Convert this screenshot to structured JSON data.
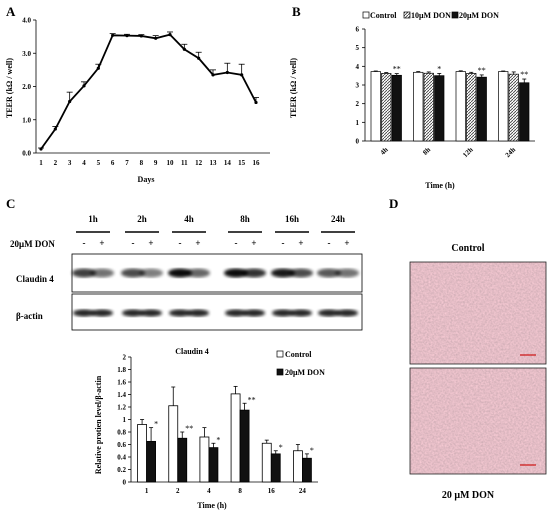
{
  "panels": {
    "A": "A",
    "B": "B",
    "C": "C",
    "D": "D"
  },
  "colors": {
    "control": "#ffffff",
    "don10": "#b8b8b8",
    "don20": "#111111",
    "photo": "#c89aa4",
    "scalebar": "#cc1111"
  },
  "blot": {
    "times": [
      "1h",
      "2h",
      "4h",
      "8h",
      "16h",
      "24h"
    ],
    "treatment_label": "20μM DON",
    "signs": [
      "-",
      "+",
      "-",
      "+",
      "-",
      "+",
      "-",
      "+",
      "-",
      "+",
      "-",
      "+"
    ],
    "rows": [
      "Claudin 4",
      "β-actin"
    ]
  },
  "micrographs": {
    "top_label": "Control",
    "bottom_label": "20 μM  DON"
  },
  "chart_data": [
    {
      "id": "A",
      "type": "line",
      "title": "",
      "xlabel": "Days",
      "ylabel": "TEER (kΩ / well)",
      "x": [
        1,
        2,
        3,
        4,
        5,
        6,
        7,
        8,
        9,
        10,
        11,
        12,
        13,
        14,
        15,
        16
      ],
      "y": [
        0.12,
        0.72,
        1.55,
        2.02,
        2.55,
        3.54,
        3.53,
        3.52,
        3.45,
        3.56,
        3.12,
        2.85,
        2.35,
        2.42,
        2.35,
        1.52
      ],
      "err": [
        0.03,
        0.08,
        0.28,
        0.12,
        0.12,
        0.05,
        0.04,
        0.04,
        0.08,
        0.08,
        0.15,
        0.18,
        0.15,
        0.28,
        0.32,
        0.15
      ],
      "ylim": [
        0,
        4
      ],
      "yticks": [
        "0.0",
        "1.0",
        "2.0",
        "3.0",
        "4.0"
      ]
    },
    {
      "id": "B",
      "type": "bar",
      "title": "",
      "xlabel": "Time (h)",
      "ylabel": "TEER (kΩ / well)",
      "categories": [
        "4h",
        "8h",
        "12h",
        "24h"
      ],
      "ylim": [
        0,
        6
      ],
      "yticks": [
        "0",
        "1",
        "2",
        "3",
        "4",
        "5",
        "6"
      ],
      "legend": [
        "Control",
        "10μM DON",
        "20μM DON"
      ],
      "series": [
        {
          "name": "Control",
          "values": [
            3.72,
            3.68,
            3.72,
            3.72
          ],
          "err": [
            0.03,
            0.04,
            0.04,
            0.03
          ]
        },
        {
          "name": "10μM DON",
          "values": [
            3.62,
            3.63,
            3.62,
            3.58
          ],
          "err": [
            0.05,
            0.07,
            0.06,
            0.12
          ]
        },
        {
          "name": "20μM DON",
          "values": [
            3.52,
            3.5,
            3.42,
            3.12
          ],
          "err": [
            0.09,
            0.12,
            0.12,
            0.2
          ]
        }
      ],
      "annotations": [
        {
          "category": "4h",
          "series": "20μM DON",
          "text": "**"
        },
        {
          "category": "8h",
          "series": "20μM DON",
          "text": "*"
        },
        {
          "category": "12h",
          "series": "20μM DON",
          "text": "**"
        },
        {
          "category": "24h",
          "series": "20μM DON",
          "text": "**"
        }
      ]
    },
    {
      "id": "C",
      "type": "bar",
      "title": "Claudin 4",
      "xlabel": "Time (h)",
      "ylabel": "Relative protien level/β-actin",
      "categories": [
        "1",
        "2",
        "4",
        "8",
        "16",
        "24"
      ],
      "ylim": [
        0,
        2.0
      ],
      "yticks": [
        "0",
        "0.2",
        "0.4",
        "0.6",
        "0.8",
        "1",
        "1.2",
        "1.4",
        "1.6",
        "1.8",
        "2"
      ],
      "legend": [
        "Control",
        "20μM DON"
      ],
      "series": [
        {
          "name": "Control",
          "values": [
            0.92,
            1.22,
            0.72,
            1.41,
            0.62,
            0.5
          ],
          "err": [
            0.08,
            0.3,
            0.15,
            0.12,
            0.05,
            0.1
          ]
        },
        {
          "name": "20μM DON",
          "values": [
            0.65,
            0.7,
            0.55,
            1.15,
            0.45,
            0.38
          ],
          "err": [
            0.22,
            0.1,
            0.07,
            0.11,
            0.05,
            0.07
          ]
        }
      ],
      "annotations": [
        {
          "category": "1",
          "text": "*"
        },
        {
          "category": "2",
          "text": "**"
        },
        {
          "category": "4",
          "text": "*"
        },
        {
          "category": "8",
          "text": "**"
        },
        {
          "category": "16",
          "text": "*"
        },
        {
          "category": "24",
          "text": "*"
        }
      ]
    }
  ]
}
